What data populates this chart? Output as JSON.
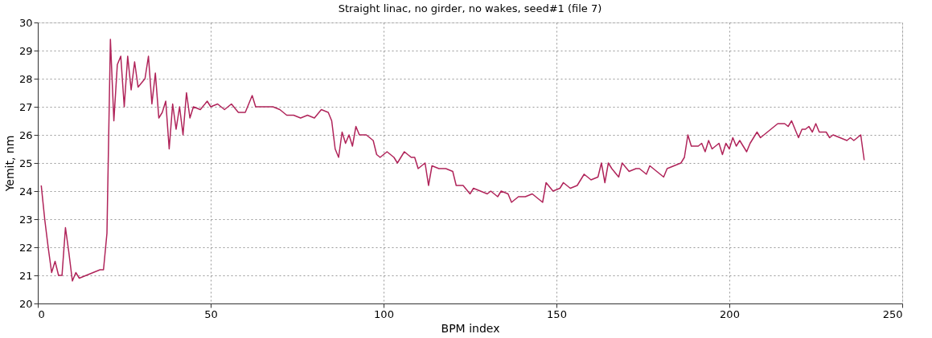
{
  "chart_data": {
    "type": "line",
    "title": "Straight linac, no girder, no wakes, seed#1 (file 7)",
    "xlabel": "BPM index",
    "ylabel": "Yemit, nm",
    "x": [
      1,
      2,
      3,
      4,
      5,
      6,
      7,
      8,
      9,
      10,
      11,
      12,
      14,
      16,
      18,
      19,
      20,
      21,
      22,
      23,
      24,
      25,
      26,
      27,
      28,
      29,
      31,
      32,
      33,
      34,
      35,
      36,
      37,
      38,
      39,
      40,
      41,
      42,
      43,
      44,
      45,
      47,
      49,
      50,
      52,
      54,
      56,
      58,
      60,
      62,
      63,
      66,
      68,
      70,
      72,
      74,
      76,
      78,
      80,
      82,
      84,
      85,
      86,
      87,
      88,
      89,
      90,
      91,
      92,
      93,
      95,
      97,
      98,
      99,
      101,
      103,
      104,
      106,
      108,
      109,
      110,
      112,
      113,
      114,
      116,
      118,
      120,
      121,
      123,
      125,
      126,
      128,
      130,
      131,
      133,
      134,
      136,
      137,
      139,
      141,
      143,
      145,
      146,
      147,
      149,
      151,
      152,
      154,
      156,
      158,
      160,
      162,
      163,
      164,
      165,
      166,
      168,
      169,
      171,
      173,
      174,
      176,
      177,
      179,
      181,
      182,
      184,
      186,
      187,
      188,
      189,
      191,
      192,
      193,
      194,
      195,
      197,
      198,
      199,
      200,
      201,
      202,
      203,
      205,
      206,
      207,
      208,
      209,
      211,
      213,
      214,
      216,
      217,
      218,
      219,
      220,
      221,
      222,
      223,
      224,
      225,
      226,
      228,
      229,
      230,
      232,
      234,
      235,
      236,
      237,
      238,
      239
    ],
    "series": [
      {
        "color": "#b0245a",
        "values": [
          24.2,
          23.0,
          22.0,
          21.1,
          21.5,
          21.0,
          21.0,
          22.7,
          21.8,
          20.8,
          21.1,
          20.9,
          21.0,
          21.1,
          21.2,
          21.2,
          22.5,
          29.4,
          26.5,
          28.5,
          28.8,
          27.0,
          28.8,
          27.6,
          28.6,
          27.7,
          28.0,
          28.8,
          27.1,
          28.2,
          26.6,
          26.8,
          27.2,
          25.5,
          27.1,
          26.2,
          27.0,
          26.0,
          27.5,
          26.6,
          27.0,
          26.9,
          27.2,
          27.0,
          27.1,
          26.9,
          27.1,
          26.8,
          26.8,
          27.4,
          27.0,
          27.0,
          27.0,
          26.9,
          26.7,
          26.7,
          26.6,
          26.7,
          26.6,
          26.9,
          26.8,
          26.5,
          25.5,
          25.2,
          26.1,
          25.7,
          26.0,
          25.6,
          26.3,
          26.0,
          26.0,
          25.8,
          25.3,
          25.2,
          25.4,
          25.2,
          25.0,
          25.4,
          25.2,
          25.2,
          24.8,
          25.0,
          24.2,
          24.9,
          24.8,
          24.8,
          24.7,
          24.2,
          24.2,
          23.9,
          24.1,
          24.0,
          23.9,
          24.0,
          23.8,
          24.0,
          23.9,
          23.6,
          23.8,
          23.8,
          23.9,
          23.7,
          23.6,
          24.3,
          24.0,
          24.1,
          24.3,
          24.1,
          24.2,
          24.6,
          24.4,
          24.5,
          25.0,
          24.3,
          25.0,
          24.8,
          24.5,
          25.0,
          24.7,
          24.8,
          24.8,
          24.6,
          24.9,
          24.7,
          24.5,
          24.8,
          24.9,
          25.0,
          25.2,
          26.0,
          25.6,
          25.6,
          25.7,
          25.4,
          25.8,
          25.5,
          25.7,
          25.3,
          25.7,
          25.5,
          25.9,
          25.6,
          25.8,
          25.4,
          25.7,
          25.9,
          26.1,
          25.9,
          26.1,
          26.3,
          26.4,
          26.4,
          26.3,
          26.5,
          26.2,
          25.9,
          26.2,
          26.2,
          26.3,
          26.1,
          26.4,
          26.1,
          26.1,
          25.9,
          26.0,
          25.9,
          25.8,
          25.9,
          25.8,
          25.9,
          26.0,
          25.1
        ]
      }
    ],
    "xlim": [
      0,
      250
    ],
    "xticks": [
      0,
      50,
      100,
      150,
      200,
      250
    ],
    "ylim": [
      20,
      30
    ],
    "yticks": [
      20,
      21,
      22,
      23,
      24,
      25,
      26,
      27,
      28,
      29,
      30
    ],
    "grid": true,
    "legend": false,
    "marker": "none",
    "line_style": "solid"
  }
}
